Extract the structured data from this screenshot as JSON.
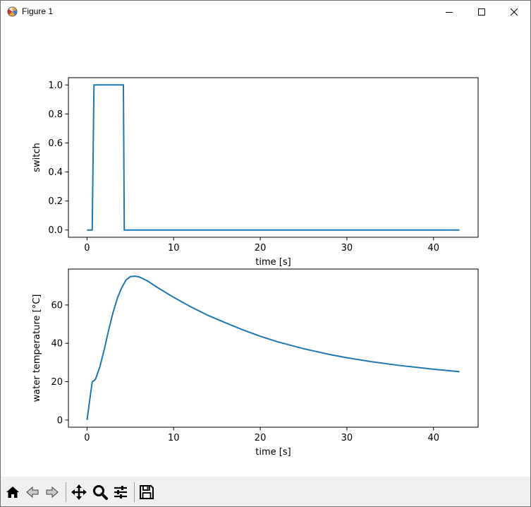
{
  "window": {
    "title": "Figure 1",
    "icons": [
      "matplotlib-icon",
      "minimize-icon",
      "maximize-icon",
      "close-icon"
    ]
  },
  "toolbar": {
    "tools": [
      "home-icon",
      "back-icon",
      "forward-icon",
      "pan-icon",
      "zoom-icon",
      "configure-subplots-icon",
      "save-icon"
    ]
  },
  "chart_data": [
    {
      "type": "line",
      "title": "",
      "xlabel": "time [s]",
      "ylabel": "switch",
      "xlim": [
        -2.15,
        45.15
      ],
      "ylim": [
        -0.05,
        1.05
      ],
      "xticks": [
        0,
        10,
        20,
        30,
        40
      ],
      "yticks": [
        0.0,
        0.2,
        0.4,
        0.6,
        0.8,
        1.0
      ],
      "ytick_labels": [
        "0.0",
        "0.2",
        "0.4",
        "0.6",
        "0.8",
        "1.0"
      ],
      "grid": false,
      "color": "#1f77b4",
      "series": [
        {
          "x": [
            0,
            0.6,
            0.8,
            4.2,
            4.3,
            43
          ],
          "y": [
            0,
            0,
            1,
            1,
            0,
            0
          ]
        }
      ]
    },
    {
      "type": "line",
      "title": "",
      "xlabel": "time [s]",
      "ylabel": "water temperature [°C]",
      "xlim": [
        -2.15,
        45.15
      ],
      "ylim": [
        -3.75,
        78.75
      ],
      "xticks": [
        0,
        10,
        20,
        30,
        40
      ],
      "yticks": [
        0,
        20,
        40,
        60
      ],
      "ytick_labels": [
        "0",
        "20",
        "40",
        "60"
      ],
      "grid": false,
      "color": "#1f77b4",
      "series": [
        {
          "x": [
            0,
            0.6,
            0.8,
            1.0,
            1.5,
            2.0,
            2.5,
            3.0,
            3.5,
            4.0,
            4.5,
            5.0,
            5.5,
            6.0,
            7.0,
            8.0,
            10.0,
            12.0,
            14.0,
            16.0,
            18.0,
            20.0,
            22.0,
            25.0,
            28.0,
            30.0,
            33.0,
            36.0,
            40.0,
            43.0
          ],
          "y": [
            0,
            20,
            20.5,
            21.5,
            28,
            37,
            47,
            56,
            63.5,
            69,
            73,
            74.8,
            75,
            74.7,
            72.5,
            69.5,
            64,
            59,
            54.5,
            50.7,
            47,
            43.7,
            40.8,
            37.2,
            34.2,
            32.5,
            30.3,
            28.5,
            26.5,
            25.2
          ]
        }
      ]
    }
  ]
}
